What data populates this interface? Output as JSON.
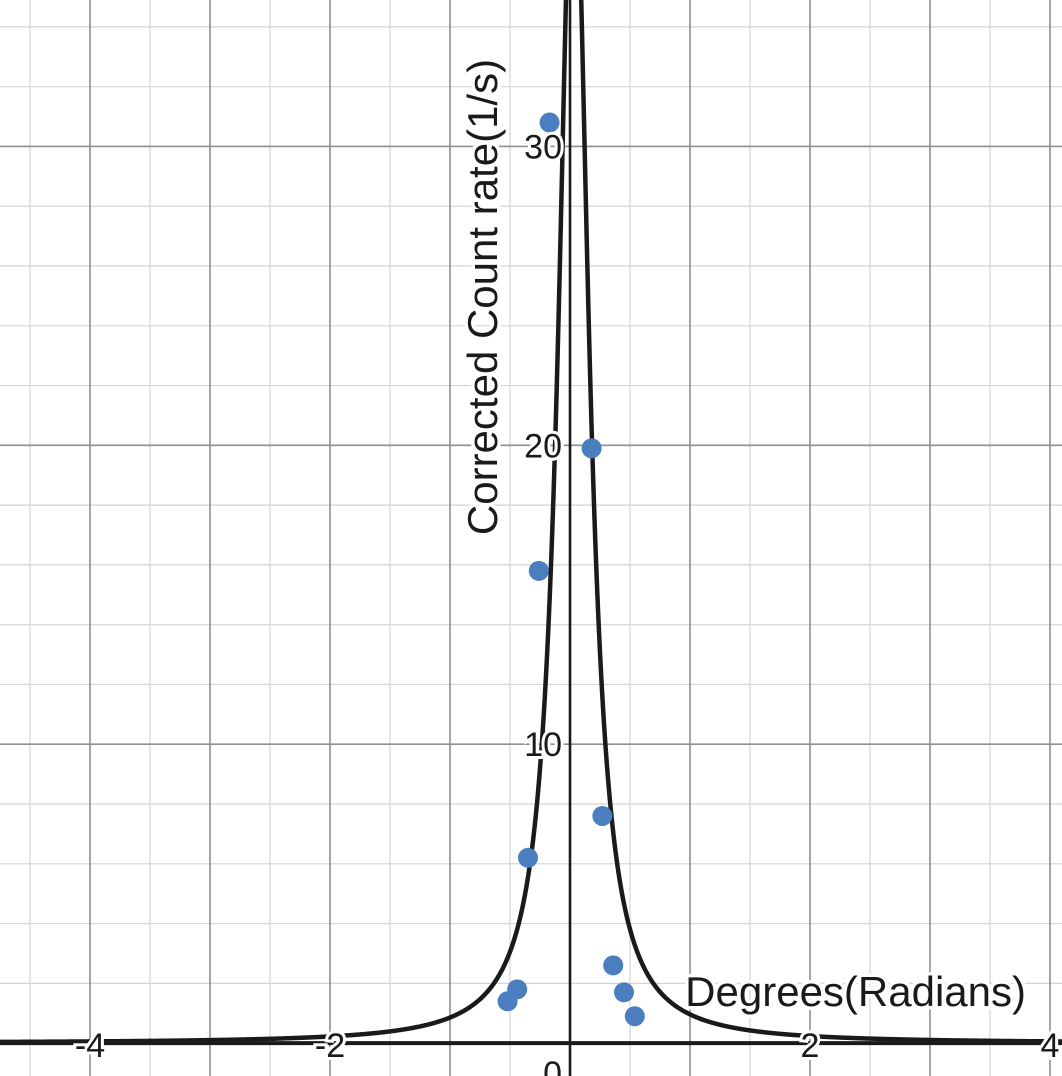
{
  "chart_data": {
    "type": "scatter",
    "title": "",
    "xlabel": "Degrees(Radians)",
    "ylabel": "Corrected Count rate(1/s)",
    "xlim": [
      -4.75,
      4.1
    ],
    "ylim": [
      -1.1,
      34.9
    ],
    "grid": true,
    "x_minor_step": 0.5,
    "y_minor_step": 2,
    "x_tick_labels": [
      {
        "value": -4,
        "label": "-4"
      },
      {
        "value": -2,
        "label": "-2"
      },
      {
        "value": 2,
        "label": "2"
      },
      {
        "value": 4,
        "label": "4"
      }
    ],
    "y_tick_labels": [
      {
        "value": 10,
        "label": "10"
      },
      {
        "value": 20,
        "label": "20"
      },
      {
        "value": 30,
        "label": "30"
      }
    ],
    "origin_label": "0",
    "series": [
      {
        "type": "scatter",
        "color": "#4a7ebf",
        "points": [
          {
            "x": -0.52,
            "y": 1.4
          },
          {
            "x": -0.44,
            "y": 1.8
          },
          {
            "x": -0.35,
            "y": 6.2
          },
          {
            "x": -0.26,
            "y": 15.8
          },
          {
            "x": -0.17,
            "y": 30.8
          },
          {
            "x": 0.18,
            "y": 19.9
          },
          {
            "x": 0.27,
            "y": 7.6
          },
          {
            "x": 0.36,
            "y": 2.6
          },
          {
            "x": 0.45,
            "y": 1.7
          },
          {
            "x": 0.54,
            "y": 0.9
          }
        ]
      },
      {
        "type": "line",
        "color": "#1a1a1a",
        "model": "lorentzian",
        "amplitude": 41.2,
        "center": 0.03,
        "half_width": 0.15
      }
    ]
  }
}
